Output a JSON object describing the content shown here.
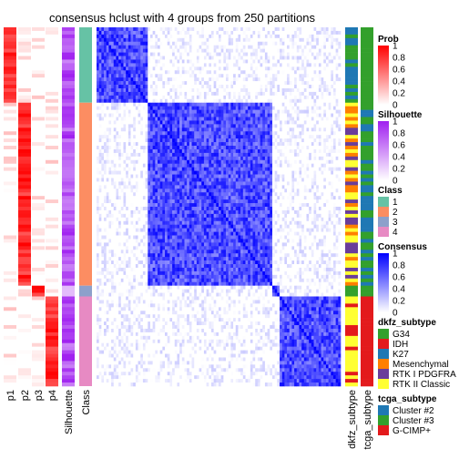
{
  "chart_data": {
    "type": "heatmap",
    "title": "consensus hclust with 4 groups from 250 partitions",
    "left_annotation_labels": [
      "p1",
      "p2",
      "p3",
      "p4",
      "Silhouette",
      "Class"
    ],
    "right_annotation_labels": [
      "dkfz_subtype",
      "tcga_subtype"
    ],
    "n_samples": 100,
    "class_blocks": [
      {
        "class": 1,
        "count": 21,
        "color": "#66C2A5"
      },
      {
        "class": 2,
        "count": 51,
        "color": "#FC8D62"
      },
      {
        "class": 3,
        "count": 3,
        "color": "#8DA0CB"
      },
      {
        "class": 4,
        "count": 25,
        "color": "#E78AC3"
      }
    ],
    "legends": [
      {
        "title": "Prob",
        "type": "gradient",
        "ticks": [
          "1",
          "0.8",
          "0.6",
          "0.4",
          "0.2",
          "0"
        ],
        "colors": [
          "#FF0000",
          "#FFFFFF"
        ]
      },
      {
        "title": "Silhouette",
        "type": "gradient",
        "ticks": [
          "1",
          "0.8",
          "0.6",
          "0.4",
          "0.2",
          "0"
        ],
        "colors": [
          "#A020F0",
          "#FFFFFF"
        ]
      },
      {
        "title": "Class",
        "type": "discrete",
        "items": [
          {
            "label": "1",
            "color": "#66C2A5"
          },
          {
            "label": "2",
            "color": "#FC8D62"
          },
          {
            "label": "3",
            "color": "#8DA0CB"
          },
          {
            "label": "4",
            "color": "#E78AC3"
          }
        ]
      },
      {
        "title": "Consensus",
        "type": "gradient",
        "ticks": [
          "1",
          "0.8",
          "0.6",
          "0.4",
          "0.2",
          "0"
        ],
        "colors": [
          "#0000FF",
          "#FFFFFF"
        ]
      },
      {
        "title": "dkfz_subtype",
        "type": "discrete",
        "items": [
          {
            "label": "G34",
            "color": "#33A02C"
          },
          {
            "label": "IDH",
            "color": "#E31A1C"
          },
          {
            "label": "K27",
            "color": "#1F78B4"
          },
          {
            "label": "Mesenchymal",
            "color": "#FF7F00"
          },
          {
            "label": "RTK I PDGFRA",
            "color": "#6A3D9A"
          },
          {
            "label": "RTK II Classic",
            "color": "#FFFF33"
          }
        ]
      },
      {
        "title": "tcga_subtype",
        "type": "discrete",
        "items": [
          {
            "label": "Cluster #2",
            "color": "#1F78B4"
          },
          {
            "label": "Cluster #3",
            "color": "#33A02C"
          },
          {
            "label": "G-CIMP+",
            "color": "#E31A1C"
          }
        ]
      }
    ]
  }
}
